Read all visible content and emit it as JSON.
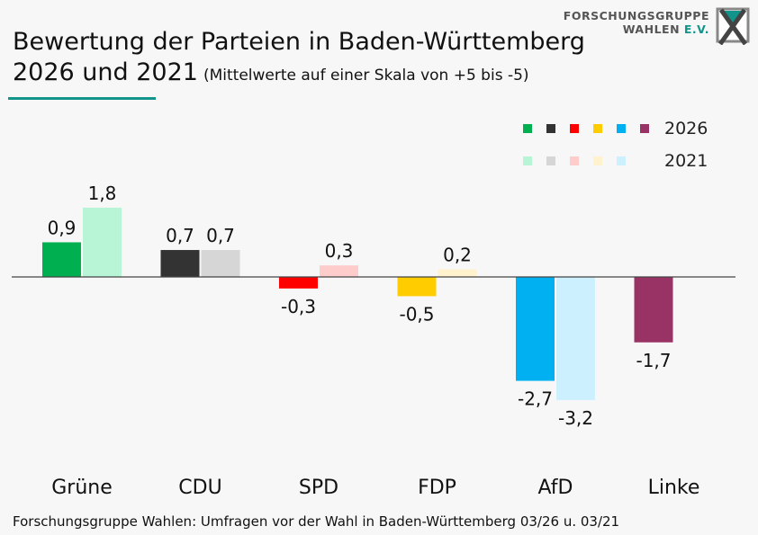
{
  "header": {
    "title_line1": "Bewertung der Parteien in Baden-Württemberg",
    "title_line2": "2026 und 2021",
    "subtitle": "(Mittelwerte auf einer Skala von +5 bis -5)",
    "accent_color": "#11958a"
  },
  "logo": {
    "line1": "FORSCHUNGSGRUPPE",
    "line2_a": "WAHLEN ",
    "line2_b": "E.V.",
    "icon": "x-box-logo-icon"
  },
  "source": "Forschungsgruppe Wahlen: Umfragen vor der Wahl in Baden-Württemberg 03/26 u. 03/21",
  "chart_data": {
    "type": "bar",
    "title": "Bewertung der Parteien in Baden-Württemberg 2026 und 2021",
    "subtitle": "(Mittelwerte auf einer Skala von +5 bis -5)",
    "xlabel": "",
    "ylabel": "",
    "ylim": [
      -5,
      5
    ],
    "grid": false,
    "legend_position": "top-right",
    "categories": [
      "Grüne",
      "CDU",
      "SPD",
      "FDP",
      "AfD",
      "Linke"
    ],
    "series": [
      {
        "name": "2026",
        "values": [
          0.9,
          0.7,
          -0.3,
          -0.5,
          -2.7,
          -1.7
        ],
        "labels": [
          "0,9",
          "0,7",
          "-0,3",
          "-0,5",
          "-2,7",
          "-1,7"
        ],
        "colors": [
          "#00b050",
          "#333333",
          "#ff0000",
          "#ffcc00",
          "#00b0f0",
          "#993366"
        ]
      },
      {
        "name": "2021",
        "values": [
          1.8,
          0.7,
          0.3,
          0.2,
          -3.2,
          null
        ],
        "labels": [
          "1,8",
          "0,7",
          "0,3",
          "0,2",
          "-3,2",
          ""
        ],
        "colors": [
          "#b8f5d6",
          "#d6d6d6",
          "#ffcccc",
          "#fff2cc",
          "#cdf0ff",
          null
        ]
      }
    ]
  }
}
